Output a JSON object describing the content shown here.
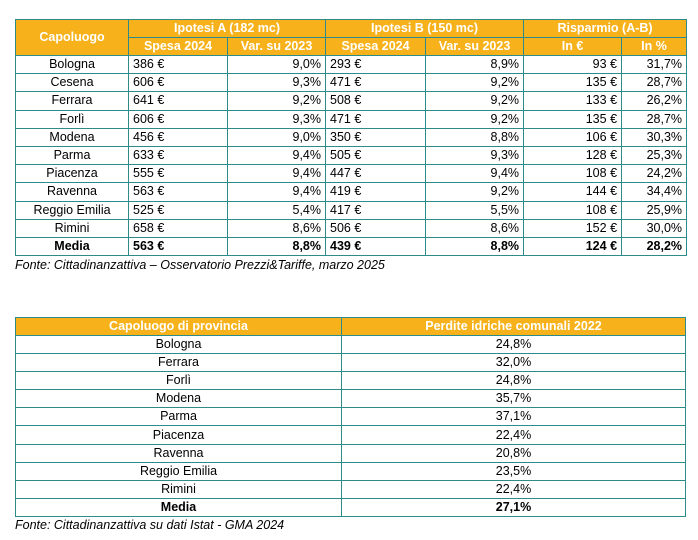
{
  "table1": {
    "city_header": "Capoluogo",
    "group_a": "Ipotesi A (182 mc)",
    "group_b": "Ipotesi B (150 mc)",
    "group_s": "Risparmio (A-B)",
    "sub_a1": "Spesa 2024",
    "sub_a2": "Var. su 2023",
    "sub_b1": "Spesa 2024",
    "sub_b2": "Var. su 2023",
    "sub_s1": "In €",
    "sub_s2": "In %",
    "rows": [
      [
        "Bologna",
        "386 €",
        "9,0%",
        "293 €",
        "8,9%",
        "93 €",
        "31,7%"
      ],
      [
        "Cesena",
        "606 €",
        "9,3%",
        "471 €",
        "9,2%",
        "135 €",
        "28,7%"
      ],
      [
        "Ferrara",
        "641 €",
        "9,2%",
        "508 €",
        "9,2%",
        "133 €",
        "26,2%"
      ],
      [
        "Forlì",
        "606 €",
        "9,3%",
        "471 €",
        "9,2%",
        "135 €",
        "28,7%"
      ],
      [
        "Modena",
        "456 €",
        "9,0%",
        "350 €",
        "8,8%",
        "106 €",
        "30,3%"
      ],
      [
        "Parma",
        "633 €",
        "9,4%",
        "505 €",
        "9,3%",
        "128 €",
        "25,3%"
      ],
      [
        "Piacenza",
        "555 €",
        "9,4%",
        "447 €",
        "9,4%",
        "108 €",
        "24,2%"
      ],
      [
        "Ravenna",
        "563 €",
        "9,4%",
        "419 €",
        "9,2%",
        "144 €",
        "34,4%"
      ],
      [
        "Reggio Emilia",
        "525 €",
        "5,4%",
        "417 €",
        "5,5%",
        "108 €",
        "25,9%"
      ],
      [
        "Rimini",
        "658 €",
        "8,6%",
        "506 €",
        "8,6%",
        "152 €",
        "30,0%"
      ]
    ],
    "average": [
      "Media",
      "563 €",
      "8,8%",
      "439 €",
      "8,8%",
      "124 €",
      "28,2%"
    ],
    "source": "Fonte: Cittadinanzattiva – Osservatorio Prezzi&Tariffe, marzo 2025"
  },
  "table2": {
    "col1": "Capoluogo di provincia",
    "col2": "Perdite idriche comunali 2022",
    "rows": [
      [
        "Bologna",
        "24,8%"
      ],
      [
        "Ferrara",
        "32,0%"
      ],
      [
        "Forlì",
        "24,8%"
      ],
      [
        "Modena",
        "35,7%"
      ],
      [
        "Parma",
        "37,1%"
      ],
      [
        "Piacenza",
        "22,4%"
      ],
      [
        "Ravenna",
        "20,8%"
      ],
      [
        "Reggio Emilia",
        "23,5%"
      ],
      [
        "Rimini",
        "22,4%"
      ]
    ],
    "average": [
      "Media",
      "27,1%"
    ],
    "source": "Fonte: Cittadinanzattiva su dati Istat - GMA 2024"
  },
  "colors": {
    "header_bg": "#f7b21b",
    "header_text": "#ffffff",
    "border": "#2e8b8b"
  }
}
